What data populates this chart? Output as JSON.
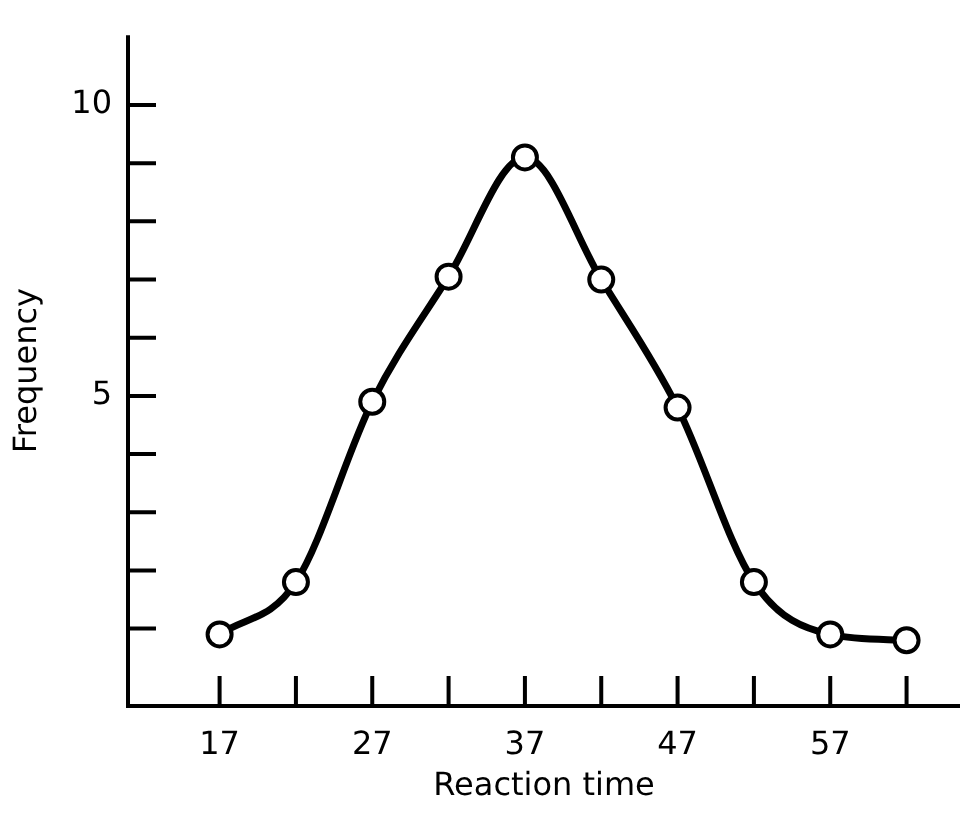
{
  "chart_data": {
    "type": "line",
    "xlabel": "Reaction time",
    "ylabel": "Frequency",
    "x": [
      17,
      22,
      27,
      32,
      37,
      42,
      47,
      52,
      57,
      62
    ],
    "values": [
      0.9,
      1.8,
      4.9,
      7.05,
      9.1,
      7.0,
      4.8,
      1.8,
      0.9,
      0.8
    ],
    "color": "#000000",
    "marker": "circle",
    "line_style": "solid",
    "xlim": [
      11,
      65.5
    ],
    "ylim": [
      -0.33,
      11.2
    ],
    "xticks": [
      17,
      {
        "value": 22,
        "label": null
      },
      27,
      {
        "value": 32,
        "label": null
      },
      37,
      {
        "value": 42,
        "label": null
      },
      47,
      {
        "value": 52,
        "label": null
      },
      57,
      {
        "value": 62,
        "label": null
      }
    ],
    "yticks": [
      {
        "value": 1,
        "label": null
      },
      {
        "value": 2,
        "label": null
      },
      {
        "value": 3,
        "label": null
      },
      {
        "value": 4,
        "label": null
      },
      5,
      {
        "value": 6,
        "label": null
      },
      {
        "value": 7,
        "label": null
      },
      {
        "value": 8,
        "label": null
      },
      {
        "value": 9,
        "label": null
      },
      10
    ],
    "grid": false,
    "legend": false
  }
}
